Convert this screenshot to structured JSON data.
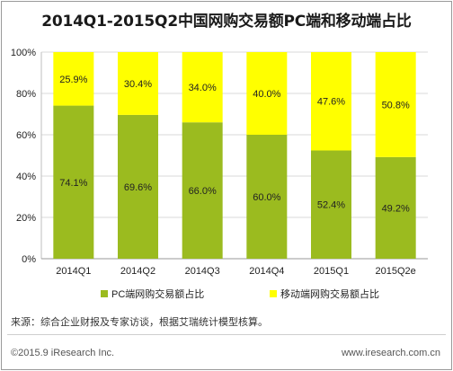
{
  "header": {
    "title": "2014Q1-2015Q2中国网购交易额PC端和移动端占比"
  },
  "chart_data": {
    "type": "bar",
    "stacked": true,
    "title": "2014Q1-2015Q2中国网购交易额PC端和移动端占比",
    "categories": [
      "2014Q1",
      "2014Q2",
      "2014Q3",
      "2014Q4",
      "2015Q1",
      "2015Q2e"
    ],
    "series": [
      {
        "name": "PC端网购交易额占比",
        "values": [
          74.1,
          69.6,
          66.0,
          60.0,
          52.4,
          49.2
        ],
        "labels": [
          "74.1%",
          "69.6%",
          "66.0%",
          "60.0%",
          "52.4%",
          "49.2%"
        ],
        "color": "#9bbb1f"
      },
      {
        "name": "移动端网购交易额占比",
        "values": [
          25.9,
          30.4,
          34.0,
          40.0,
          47.6,
          50.8
        ],
        "labels": [
          "25.9%",
          "30.4%",
          "34.0%",
          "40.0%",
          "47.6%",
          "50.8%"
        ],
        "color": "#ffff00"
      }
    ],
    "ylim": [
      0,
      100
    ],
    "yticks": [
      0,
      20,
      40,
      60,
      80,
      100
    ],
    "ytick_labels": [
      "0%",
      "20%",
      "40%",
      "60%",
      "80%",
      "100%"
    ],
    "xlabel": "",
    "ylabel": "",
    "grid": true,
    "legend_position": "bottom"
  },
  "footer": {
    "source": "来源：综合企业财报及专家访谈，根据艾瑞统计模型核算。",
    "copyright": "©2015.9 iResearch Inc.",
    "website": "www.iresearch.com.cn"
  }
}
